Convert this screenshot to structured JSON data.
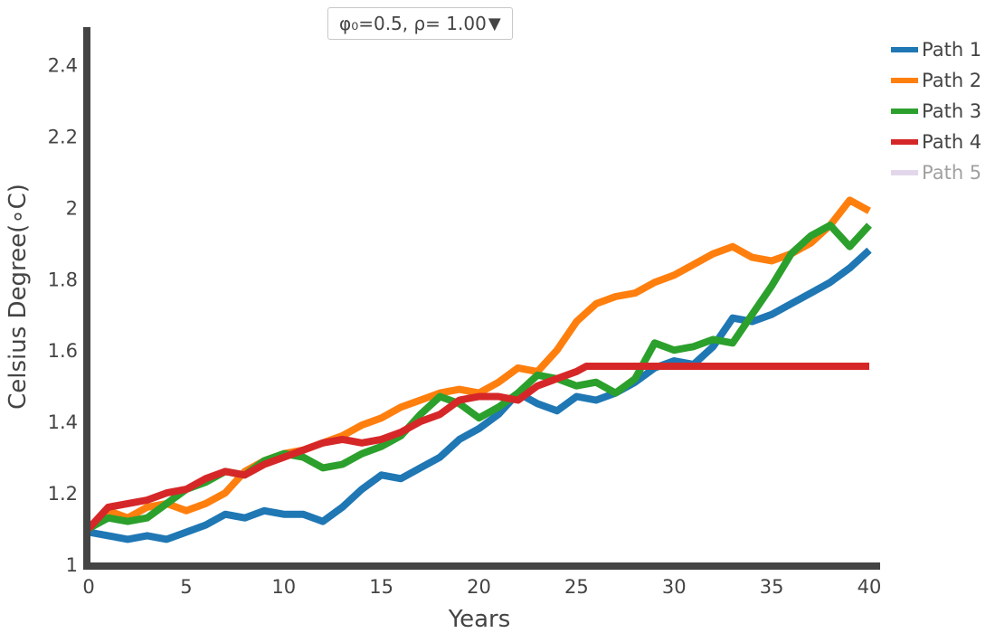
{
  "control": {
    "dropdown_label": "φ₀=0.5, ρ= 1.00",
    "caret": "▼"
  },
  "chart_data": {
    "type": "line",
    "xlabel": "Years",
    "ylabel": "Celsius Degree(∘C)",
    "xlim": [
      0,
      40
    ],
    "ylim": [
      1.0,
      2.5
    ],
    "xticks": [
      0,
      5,
      10,
      15,
      20,
      25,
      30,
      35,
      40
    ],
    "xtick_labels": [
      "0",
      "5",
      "10",
      "15",
      "20",
      "25",
      "30",
      "35",
      "40"
    ],
    "yticks": [
      1.0,
      1.2,
      1.4,
      1.6,
      1.8,
      2.0,
      2.2,
      2.4
    ],
    "ytick_labels": [
      "1",
      "1.2",
      "1.4",
      "1.6",
      "1.8",
      "2",
      "2.2",
      "2.4"
    ],
    "grid": false,
    "legend_position": "top-right",
    "series": [
      {
        "name": "Path 1",
        "color": "#1f77b4",
        "visible": true,
        "x": [
          0,
          1,
          2,
          3,
          4,
          5,
          6,
          7,
          8,
          9,
          10,
          11,
          12,
          13,
          14,
          15,
          16,
          17,
          18,
          19,
          20,
          21,
          22,
          23,
          24,
          25,
          26,
          27,
          28,
          29,
          30,
          31,
          32,
          33,
          34,
          35,
          36,
          37,
          38,
          39,
          40
        ],
        "y": [
          1.09,
          1.08,
          1.07,
          1.08,
          1.07,
          1.09,
          1.11,
          1.14,
          1.13,
          1.15,
          1.14,
          1.14,
          1.12,
          1.16,
          1.21,
          1.25,
          1.24,
          1.27,
          1.3,
          1.35,
          1.38,
          1.42,
          1.48,
          1.45,
          1.43,
          1.47,
          1.46,
          1.48,
          1.51,
          1.55,
          1.57,
          1.56,
          1.61,
          1.69,
          1.68,
          1.7,
          1.73,
          1.76,
          1.79,
          1.83,
          1.88
        ]
      },
      {
        "name": "Path 2",
        "color": "#ff7f0e",
        "visible": true,
        "x": [
          0,
          1,
          2,
          3,
          4,
          5,
          6,
          7,
          8,
          9,
          10,
          11,
          12,
          13,
          14,
          15,
          16,
          17,
          18,
          19,
          20,
          21,
          22,
          23,
          24,
          25,
          26,
          27,
          28,
          29,
          30,
          31,
          32,
          33,
          34,
          35,
          36,
          37,
          38,
          39,
          40
        ],
        "y": [
          1.1,
          1.15,
          1.13,
          1.16,
          1.17,
          1.15,
          1.17,
          1.2,
          1.26,
          1.29,
          1.31,
          1.32,
          1.34,
          1.36,
          1.39,
          1.41,
          1.44,
          1.46,
          1.48,
          1.49,
          1.48,
          1.51,
          1.55,
          1.54,
          1.6,
          1.68,
          1.73,
          1.75,
          1.76,
          1.79,
          1.81,
          1.84,
          1.87,
          1.89,
          1.86,
          1.85,
          1.87,
          1.9,
          1.95,
          2.02,
          1.99
        ]
      },
      {
        "name": "Path 3",
        "color": "#2ca02c",
        "visible": true,
        "x": [
          0,
          1,
          2,
          3,
          4,
          5,
          6,
          7,
          8,
          9,
          10,
          11,
          12,
          13,
          14,
          15,
          16,
          17,
          18,
          19,
          20,
          21,
          22,
          23,
          24,
          25,
          26,
          27,
          28,
          29,
          30,
          31,
          32,
          33,
          34,
          35,
          36,
          37,
          38,
          39,
          40
        ],
        "y": [
          1.1,
          1.13,
          1.12,
          1.13,
          1.17,
          1.21,
          1.23,
          1.26,
          1.25,
          1.29,
          1.31,
          1.3,
          1.27,
          1.28,
          1.31,
          1.33,
          1.36,
          1.42,
          1.47,
          1.45,
          1.41,
          1.44,
          1.48,
          1.53,
          1.52,
          1.5,
          1.51,
          1.48,
          1.52,
          1.62,
          1.6,
          1.61,
          1.63,
          1.62,
          1.7,
          1.78,
          1.87,
          1.92,
          1.95,
          1.89,
          1.95
        ]
      },
      {
        "name": "Path 4",
        "color": "#d62728",
        "visible": true,
        "x": [
          0,
          1,
          2,
          3,
          4,
          5,
          6,
          7,
          8,
          9,
          10,
          11,
          12,
          13,
          14,
          15,
          16,
          17,
          18,
          19,
          20,
          21,
          22,
          23,
          24,
          25,
          25.5,
          30,
          35,
          40
        ],
        "y": [
          1.1,
          1.16,
          1.17,
          1.18,
          1.2,
          1.21,
          1.24,
          1.26,
          1.25,
          1.28,
          1.3,
          1.32,
          1.34,
          1.35,
          1.34,
          1.35,
          1.37,
          1.4,
          1.42,
          1.46,
          1.47,
          1.47,
          1.46,
          1.5,
          1.52,
          1.54,
          1.555,
          1.555,
          1.555,
          1.555
        ]
      },
      {
        "name": "Path 5",
        "color": "#c5b0d5",
        "visible": false,
        "x": [],
        "y": []
      }
    ]
  }
}
